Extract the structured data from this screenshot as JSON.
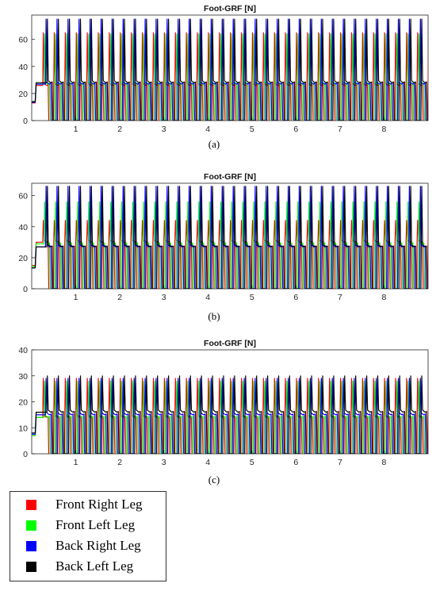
{
  "chart_data": [
    {
      "type": "line",
      "panel_label": "(a)",
      "title": "Foot-GRF [N]",
      "xlim": [
        0,
        9
      ],
      "ylim": [
        0,
        78
      ],
      "xticks": [
        1,
        2,
        3,
        4,
        5,
        6,
        7,
        8
      ],
      "yticks": [
        0,
        20,
        40,
        60
      ],
      "grid": false,
      "period": 0.25,
      "series": [
        {
          "name": "Front Right Leg",
          "color": "#ff0000",
          "stance_level": 26,
          "peak": 65,
          "phase": 0.0
        },
        {
          "name": "Front Left Leg",
          "color": "#00ff00",
          "stance_level": 27,
          "peak": 64,
          "phase": 0.0625
        },
        {
          "name": "Back Right Leg",
          "color": "#0000ff",
          "stance_level": 27,
          "peak": 75,
          "phase": 0.125
        },
        {
          "name": "Back Left Leg",
          "color": "#000000",
          "stance_level": 28,
          "peak": 75,
          "phase": 0.1875
        }
      ]
    },
    {
      "type": "line",
      "panel_label": "(b)",
      "title": "Foot-GRF [N]",
      "xlim": [
        0,
        9
      ],
      "ylim": [
        0,
        68
      ],
      "xticks": [
        1,
        2,
        3,
        4,
        5,
        6,
        7,
        8
      ],
      "yticks": [
        0,
        20,
        40,
        60
      ],
      "grid": false,
      "period": 0.25,
      "series": [
        {
          "name": "Front Right Leg",
          "color": "#ff0000",
          "stance_level": 30,
          "peak": 44,
          "phase": 0.0
        },
        {
          "name": "Front Left Leg",
          "color": "#00ff00",
          "stance_level": 29,
          "peak": 56,
          "phase": 0.0625
        },
        {
          "name": "Back Right Leg",
          "color": "#0000ff",
          "stance_level": 27,
          "peak": 66,
          "phase": 0.125
        },
        {
          "name": "Back Left Leg",
          "color": "#000000",
          "stance_level": 27,
          "peak": 66,
          "phase": 0.1875
        }
      ]
    },
    {
      "type": "line",
      "panel_label": "(c)",
      "title": "Foot-GRF [N]",
      "xlim": [
        0,
        9
      ],
      "ylim": [
        0,
        40
      ],
      "xticks": [
        1,
        2,
        3,
        4,
        5,
        6,
        7,
        8
      ],
      "yticks": [
        0,
        10,
        20,
        30,
        40
      ],
      "grid": false,
      "period": 0.25,
      "series": [
        {
          "name": "Front Right Leg",
          "color": "#ff0000",
          "stance_level": 14,
          "peak": 29,
          "phase": 0.0
        },
        {
          "name": "Front Left Leg",
          "color": "#00ff00",
          "stance_level": 14,
          "peak": 28,
          "phase": 0.0625
        },
        {
          "name": "Back Right Leg",
          "color": "#0000ff",
          "stance_level": 15,
          "peak": 29,
          "phase": 0.125
        },
        {
          "name": "Back Left Leg",
          "color": "#000000",
          "stance_level": 16,
          "peak": 30,
          "phase": 0.1875
        }
      ]
    }
  ],
  "legend": {
    "items": [
      {
        "label": "Front Right Leg",
        "color": "#ff0000"
      },
      {
        "label": "Front Left Leg",
        "color": "#00ff00"
      },
      {
        "label": "Back Right Leg",
        "color": "#0000ff"
      },
      {
        "label": "Back Left Leg",
        "color": "#000000"
      }
    ]
  }
}
